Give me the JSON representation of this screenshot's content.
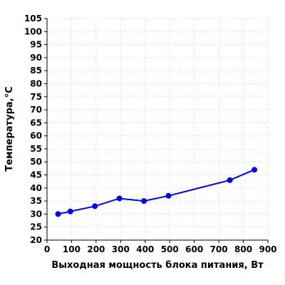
{
  "chart_data": {
    "type": "line",
    "xlabel": "Выходная мощность блока питания, Вт",
    "ylabel": "Температура,°C",
    "xlim": [
      0,
      900
    ],
    "ylim": [
      20,
      105
    ],
    "x_ticks": [
      0,
      100,
      200,
      300,
      400,
      500,
      600,
      700,
      800,
      900
    ],
    "y_ticks": [
      20,
      25,
      30,
      35,
      40,
      45,
      50,
      55,
      60,
      65,
      70,
      75,
      80,
      85,
      90,
      95,
      100,
      105
    ],
    "grid": true,
    "series": [
      {
        "color": "#0000ee",
        "x": [
          45,
          95,
          195,
          295,
          395,
          495,
          745,
          845
        ],
        "y": [
          30,
          31,
          33,
          36,
          35,
          37,
          43,
          47
        ]
      }
    ]
  }
}
